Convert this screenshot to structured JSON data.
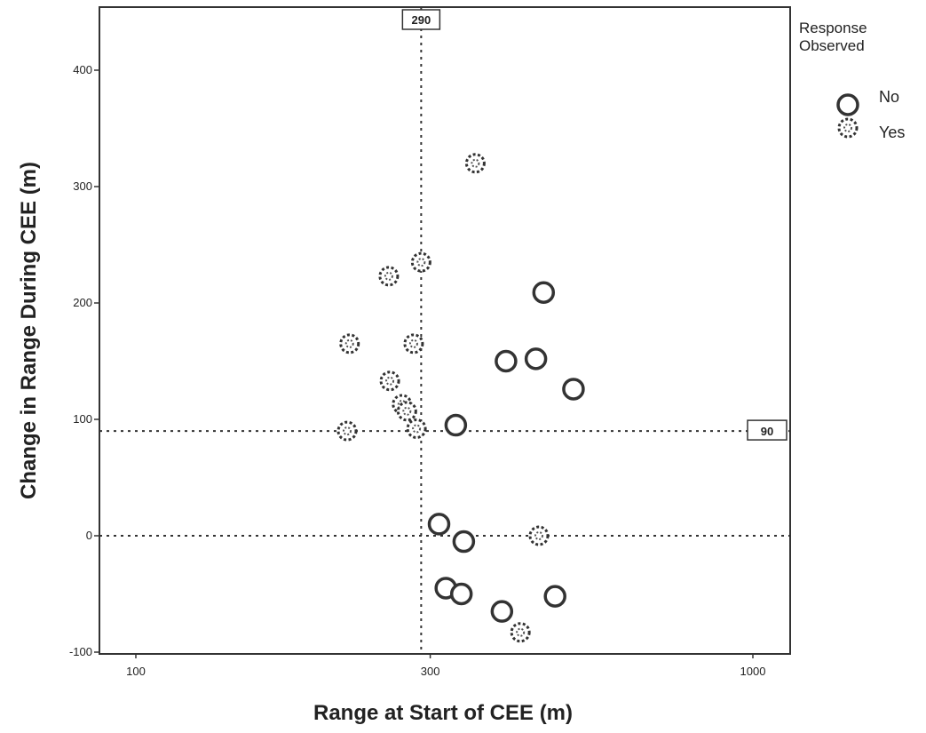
{
  "chart_data": {
    "type": "scatter",
    "xlabel": "Range at Start of CEE (m)",
    "ylabel": "Change in Range During CEE (m)",
    "x_scale": "log",
    "xlim": [
      100,
      1000
    ],
    "ylim": [
      -100,
      400
    ],
    "x_ticks": [
      100,
      300,
      1000
    ],
    "x_tick_labels": [
      "100",
      "300",
      "1000"
    ],
    "y_ticks": [
      -100,
      0,
      100,
      200,
      300,
      400
    ],
    "y_tick_labels": [
      "-100",
      "0",
      "100",
      "200",
      "300",
      "400"
    ],
    "reference_lines": [
      {
        "axis": "x",
        "value": 290,
        "label": "290"
      },
      {
        "axis": "y",
        "value": 90,
        "label": "90"
      },
      {
        "axis": "y",
        "value": 0,
        "label": ""
      }
    ],
    "legend_title": "Response Observed",
    "legend_position": "right",
    "grid": false,
    "series": [
      {
        "name": "No",
        "marker": "open-circle",
        "points": [
          {
            "x": 310,
            "y": 10
          },
          {
            "x": 318,
            "y": -45
          },
          {
            "x": 330,
            "y": 95
          },
          {
            "x": 340,
            "y": -5
          },
          {
            "x": 337,
            "y": -50
          },
          {
            "x": 392,
            "y": -65
          },
          {
            "x": 398,
            "y": 150
          },
          {
            "x": 445,
            "y": 152
          },
          {
            "x": 458,
            "y": 209
          },
          {
            "x": 478,
            "y": -52
          },
          {
            "x": 512,
            "y": 126
          }
        ]
      },
      {
        "name": "Yes",
        "marker": "open-circle-dotted",
        "points": [
          {
            "x": 220,
            "y": 90
          },
          {
            "x": 222,
            "y": 165
          },
          {
            "x": 257,
            "y": 223
          },
          {
            "x": 258,
            "y": 133
          },
          {
            "x": 270,
            "y": 113
          },
          {
            "x": 275,
            "y": 107
          },
          {
            "x": 282,
            "y": 165
          },
          {
            "x": 285,
            "y": 92
          },
          {
            "x": 290,
            "y": 235
          },
          {
            "x": 355,
            "y": 320
          },
          {
            "x": 420,
            "y": -83
          },
          {
            "x": 450,
            "y": 0
          }
        ]
      }
    ]
  }
}
